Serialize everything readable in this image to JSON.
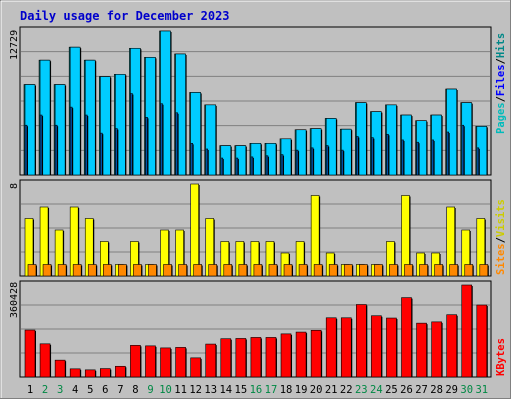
{
  "chart_data": {
    "type": "bar",
    "title": "Daily usage for December 2023",
    "categories": [
      "1",
      "2",
      "3",
      "4",
      "5",
      "6",
      "7",
      "8",
      "9",
      "10",
      "11",
      "12",
      "13",
      "14",
      "15",
      "16",
      "17",
      "18",
      "19",
      "20",
      "21",
      "22",
      "23",
      "24",
      "25",
      "26",
      "27",
      "28",
      "29",
      "30",
      "31"
    ],
    "weekend_days": [
      "2",
      "3",
      "9",
      "10",
      "16",
      "17",
      "23",
      "24",
      "30",
      "31"
    ],
    "colors": {
      "title": "#0000cc",
      "hits": "#008888",
      "files": "#00ccff",
      "pages": "#00bbbb",
      "visits": "#ffff00",
      "sites": "#ff8800",
      "kbytes": "#ff0000",
      "weekday_label": "#000000",
      "weekend_label": "#008844",
      "slash": "#000000",
      "files_label": "#0000ff"
    },
    "panels": [
      {
        "id": "hits-files-pages",
        "max_label": "12729",
        "ylim": [
          0,
          12729
        ],
        "series": [
          {
            "name": "Hits",
            "values": [
              8000,
              10150,
              8000,
              11300,
              10150,
              8700,
              8900,
              11200,
              10400,
              12729,
              10700,
              7300,
              6200,
              2600,
              2600,
              2800,
              2800,
              3200,
              4000,
              4100,
              5000,
              4050,
              6400,
              5600,
              6200,
              5300,
              4800,
              5300,
              7600,
              6400,
              4300
            ]
          },
          {
            "name": "Files",
            "values": [
              8000,
              10150,
              8000,
              11300,
              10150,
              8700,
              8900,
              11200,
              10400,
              12729,
              10700,
              7300,
              6200,
              2600,
              2600,
              2800,
              2800,
              3200,
              4000,
              4100,
              5000,
              4050,
              6400,
              5600,
              6200,
              5300,
              4800,
              5300,
              7600,
              6400,
              4300
            ]
          },
          {
            "name": "Pages",
            "values": [
              4400,
              5300,
              4400,
              6000,
              5300,
              3700,
              4100,
              7200,
              5100,
              6300,
              5500,
              2800,
              2300,
              1500,
              1500,
              1600,
              1700,
              1800,
              2200,
              2400,
              2600,
              2200,
              3400,
              3300,
              3600,
              3100,
              2900,
              3100,
              3800,
              4400,
              2400
            ]
          }
        ]
      },
      {
        "id": "visits-sites",
        "max_label": "8",
        "ylim": [
          0,
          8
        ],
        "series": [
          {
            "name": "Visits",
            "values": [
              5,
              6,
              4,
              6,
              5,
              3,
              1,
              3,
              1,
              4,
              4,
              8,
              5,
              3,
              3,
              3,
              3,
              2,
              3,
              7,
              2,
              1,
              1,
              1,
              3,
              7,
              2,
              2,
              6,
              4,
              5
            ]
          },
          {
            "name": "Sites",
            "values": [
              1,
              1,
              1,
              1,
              1,
              1,
              1,
              1,
              1,
              1,
              1,
              1,
              1,
              1,
              1,
              1,
              1,
              1,
              1,
              1,
              1,
              1,
              1,
              1,
              1,
              1,
              1,
              1,
              1,
              1,
              1
            ]
          }
        ]
      },
      {
        "id": "kbytes",
        "max_label": "360428",
        "ylim": [
          0,
          360428
        ],
        "series": [
          {
            "name": "KBytes",
            "values": [
              184000,
              130000,
              66000,
              32000,
              28000,
              33000,
              42000,
              124000,
              122000,
              114000,
              116000,
              75000,
              129000,
              150000,
              151000,
              155000,
              155000,
              169000,
              176000,
              183000,
              232000,
              232000,
              284000,
              240000,
              231000,
              311000,
              211000,
              216000,
              244000,
              360428,
              282000
            ]
          }
        ]
      }
    ]
  }
}
